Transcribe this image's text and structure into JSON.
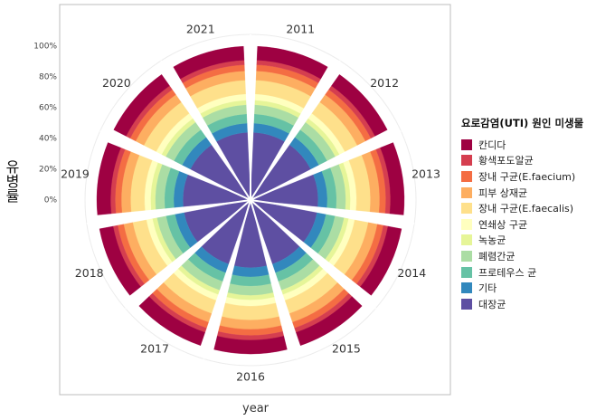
{
  "chart_data": {
    "type": "bar",
    "coord": "polar",
    "stacked": true,
    "categories": [
      "2011",
      "2012",
      "2013",
      "2014",
      "2015",
      "2016",
      "2017",
      "2018",
      "2019",
      "2020",
      "2021"
    ],
    "ylabel": "유병률",
    "xlabel": "year",
    "yticks": [
      "0%",
      "20%",
      "40%",
      "60%",
      "80%",
      "100%"
    ],
    "ylim": [
      0,
      100
    ],
    "legend": {
      "title": "요로감염(UTI) 원인 미생물",
      "placement": "right"
    },
    "series": [
      {
        "name": "대장균",
        "color": "#5e4fa2",
        "values": [
          44,
          44,
          44,
          44,
          44,
          44,
          44,
          44,
          44,
          44,
          44
        ]
      },
      {
        "name": "기타",
        "color": "#3288bd",
        "values": [
          6,
          6,
          6,
          6,
          6,
          6,
          6,
          6,
          6,
          6,
          6
        ]
      },
      {
        "name": "프로테우스 균",
        "color": "#66c2a5",
        "values": [
          6,
          6,
          6,
          6,
          6,
          6,
          6,
          6,
          6,
          6,
          6
        ]
      },
      {
        "name": "폐렴간균",
        "color": "#abdda4",
        "values": [
          6,
          6,
          6,
          6,
          6,
          6,
          6,
          6,
          6,
          6,
          6
        ]
      },
      {
        "name": "녹농균",
        "color": "#e6f598",
        "values": [
          3,
          3,
          3,
          3,
          3,
          3,
          3,
          3,
          3,
          3,
          3
        ]
      },
      {
        "name": "연쇄상 구균",
        "color": "#ffffbf",
        "values": [
          4,
          4,
          4,
          4,
          4,
          4,
          4,
          4,
          4,
          4,
          4
        ]
      },
      {
        "name": "장내 구균(E.faecalis)",
        "color": "#fee08b",
        "values": [
          9,
          9,
          9,
          9,
          9,
          9,
          9,
          9,
          9,
          9,
          9
        ]
      },
      {
        "name": "피부 상재균",
        "color": "#fdae61",
        "values": [
          6,
          6,
          6,
          6,
          6,
          6,
          6,
          6,
          6,
          6,
          6
        ]
      },
      {
        "name": "장내 구균(E.faecium)",
        "color": "#f46d43",
        "values": [
          4,
          4,
          4,
          4,
          4,
          4,
          4,
          4,
          4,
          4,
          4
        ]
      },
      {
        "name": "황색포도알균",
        "color": "#d53e4f",
        "values": [
          3,
          3,
          3,
          3,
          3,
          3,
          3,
          3,
          3,
          3,
          3
        ]
      },
      {
        "name": "칸디다",
        "color": "#9e0142",
        "values": [
          9,
          9,
          9,
          9,
          9,
          9,
          9,
          9,
          9,
          9,
          9
        ]
      }
    ]
  }
}
